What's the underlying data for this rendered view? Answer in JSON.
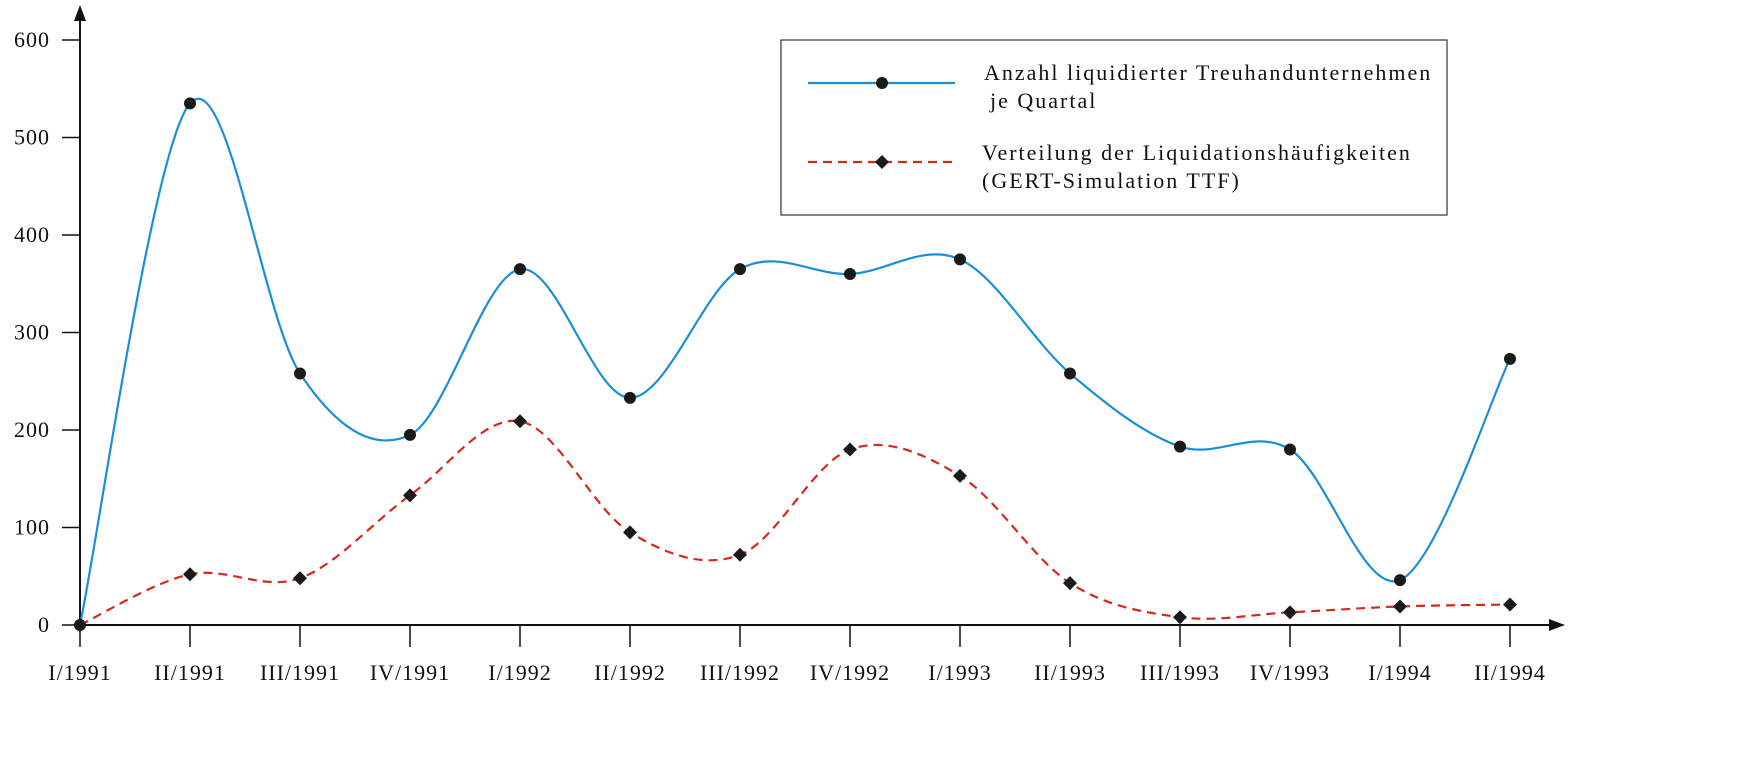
{
  "chart_data": {
    "type": "line",
    "categories": [
      "I/1991",
      "II/1991",
      "III/1991",
      "IV/1991",
      "I/1992",
      "II/1992",
      "III/1992",
      "IV/1992",
      "I/1993",
      "II/1993",
      "III/1993",
      "IV/1993",
      "I/1994",
      "II/1994"
    ],
    "series": [
      {
        "name": "Anzahl liquidierter Treuhandunternehmen je Quartal",
        "name_lines": [
          "Anzahl liquidierter Treuhandunternehmen",
          "je Quartal"
        ],
        "values": [
          0,
          535,
          258,
          195,
          365,
          233,
          365,
          360,
          375,
          258,
          183,
          180,
          46,
          273
        ],
        "color": "#1a8fd8",
        "style": "solid",
        "marker": "circle"
      },
      {
        "name": "Verteilung der Liquidationshäufigkeiten (GERT-Simulation TTF)",
        "name_lines": [
          "Verteilung der Liquidationshäufigkeiten",
          "(GERT-Simulation TTF)"
        ],
        "values": [
          0,
          52,
          48,
          133,
          209,
          95,
          72,
          180,
          153,
          43,
          8,
          13,
          19,
          21
        ],
        "color": "#d42a1e",
        "style": "dashed",
        "marker": "diamond"
      }
    ],
    "y_ticks": [
      0,
      100,
      200,
      300,
      400,
      500,
      600
    ],
    "y_tick_labels": [
      "0",
      "100",
      "200",
      "300",
      "400",
      "500",
      "600"
    ],
    "ylim": [
      0,
      600
    ],
    "grid": false,
    "legend_position": "top-right",
    "xlabel": "",
    "ylabel": "",
    "title": ""
  }
}
